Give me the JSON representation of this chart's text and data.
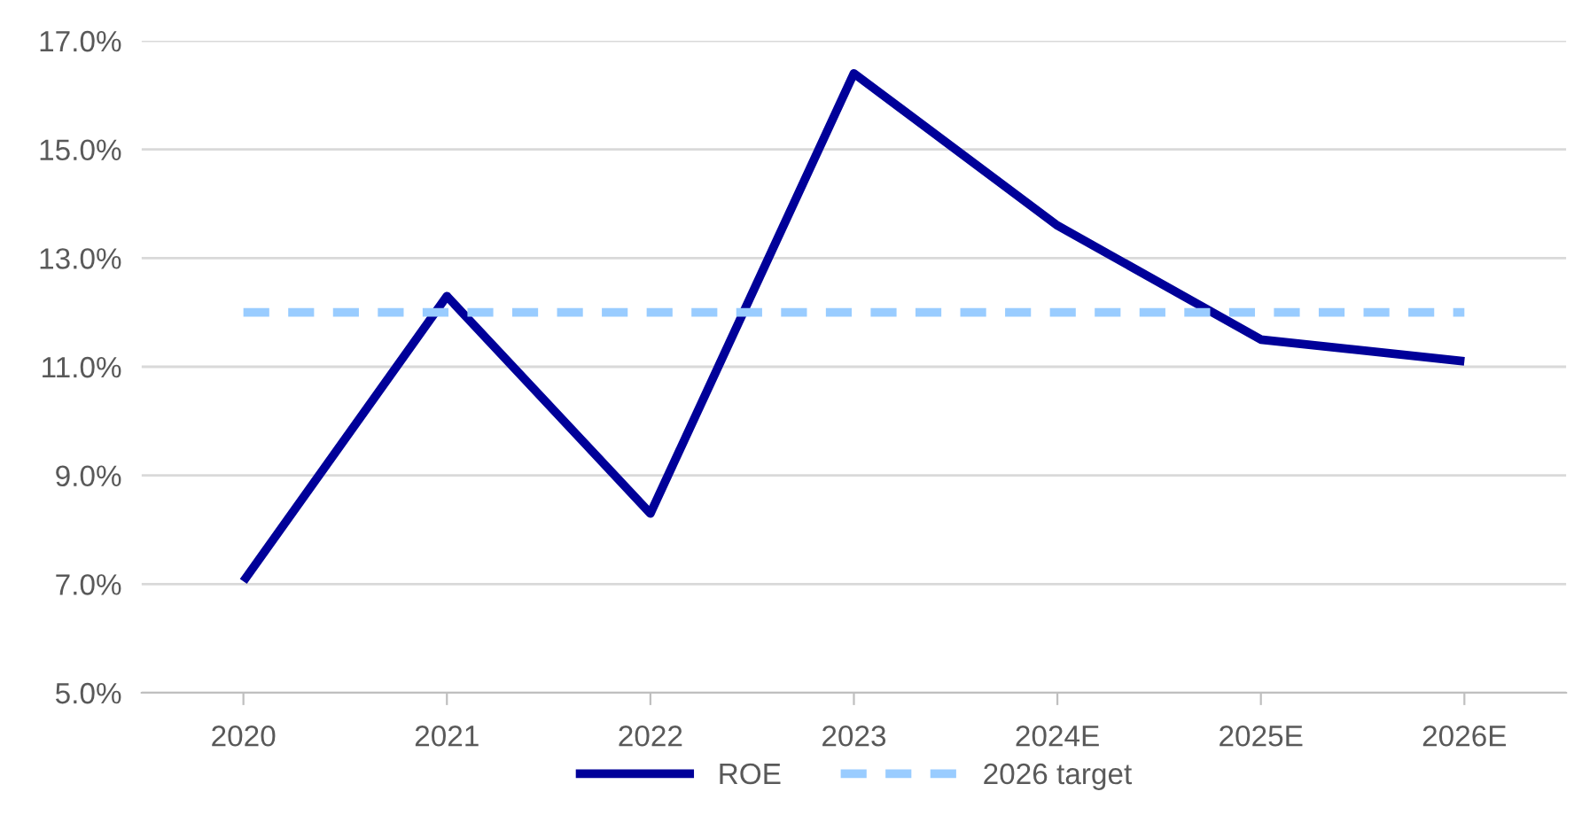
{
  "chart_data": {
    "type": "line",
    "categories": [
      "2020",
      "2021",
      "2022",
      "2023",
      "2024E",
      "2025E",
      "2026E"
    ],
    "series": [
      {
        "name": "ROE",
        "color": "#000099",
        "values": [
          7.05,
          12.3,
          8.3,
          16.4,
          13.6,
          11.5,
          11.1
        ],
        "line_style": "solid"
      },
      {
        "name": "2026 target",
        "color": "#99ccff",
        "values": [
          12.0,
          12.0,
          12.0,
          12.0,
          12.0,
          12.0,
          12.0
        ],
        "line_style": "dashed"
      }
    ],
    "ylim": [
      5,
      17
    ],
    "yticks": [
      {
        "value": 5,
        "label": "5.0%"
      },
      {
        "value": 7,
        "label": "7.0%"
      },
      {
        "value": 9,
        "label": "9.0%"
      },
      {
        "value": 11,
        "label": "11.0%"
      },
      {
        "value": 13,
        "label": "13.0%"
      },
      {
        "value": 15,
        "label": "15.0%"
      },
      {
        "value": 17,
        "label": "17.0%"
      }
    ],
    "grid": "y",
    "legend": "bottom",
    "marker": "none"
  }
}
